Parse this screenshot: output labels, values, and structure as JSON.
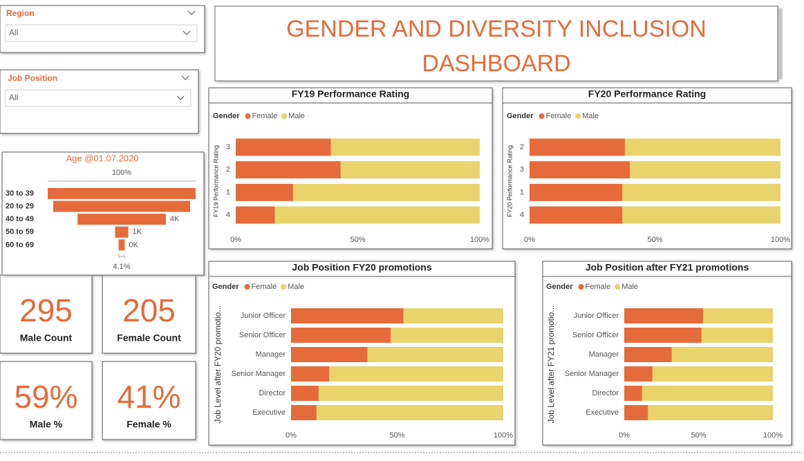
{
  "dashboard_title": "GENDER AND DIVERSITY INCLUSION DASHBOARD",
  "slicers": [
    {
      "label": "Region",
      "selection": "All"
    },
    {
      "label": "Job Position",
      "selection": "All"
    }
  ],
  "cards": [
    {
      "value": "295",
      "label": "Male Count"
    },
    {
      "value": "205",
      "label": "Female Count"
    },
    {
      "value": "59%",
      "label": "Male %"
    },
    {
      "value": "41%",
      "label": "Female %"
    }
  ],
  "chart_data": [
    {
      "type": "funnel",
      "title": "Age @01.07.2020",
      "categories": [
        "30 to 39",
        "20 to 29",
        "40 to 49",
        "50 to 59",
        "60 to 69"
      ],
      "values": [
        6700,
        6200,
        4000,
        600,
        275
      ],
      "value_labels": [
        null,
        null,
        "4K",
        "1K",
        "0K"
      ],
      "color": "#e66b3a",
      "top_label": "100%",
      "bottom_label": "4.1%"
    },
    {
      "type": "bar",
      "title": "FY19 Performance Rating",
      "legend_title": "Gender",
      "y_label": "FY19 Performance Rating",
      "categories": [
        "3",
        "2",
        "1",
        "4"
      ],
      "series": [
        {
          "name": "Female",
          "color": "#e66b3a",
          "values": [
            39,
            43,
            23.5,
            16
          ]
        },
        {
          "name": "Male",
          "color": "#e8d36d",
          "values": [
            61,
            57,
            76.5,
            84
          ]
        }
      ],
      "xlim": [
        0,
        100
      ],
      "xticks": [
        {
          "value": 0,
          "label": "0%"
        },
        {
          "value": 50,
          "label": "50%"
        },
        {
          "value": 100,
          "label": "100%"
        }
      ]
    },
    {
      "type": "bar",
      "title": "FY20 Performance Rating",
      "legend_title": "Gender",
      "y_label": "FY20 Performance Rating",
      "categories": [
        "2",
        "3",
        "1",
        "4"
      ],
      "series": [
        {
          "name": "Female",
          "color": "#e66b3a",
          "values": [
            38,
            40,
            37,
            37
          ]
        },
        {
          "name": "Male",
          "color": "#e8d36d",
          "values": [
            62,
            60,
            63,
            63
          ]
        }
      ],
      "xlim": [
        0,
        100
      ],
      "xticks": [
        {
          "value": 0,
          "label": "0%"
        },
        {
          "value": 50,
          "label": "50%"
        },
        {
          "value": 100,
          "label": "100%"
        }
      ]
    },
    {
      "type": "bar",
      "title": "Job Position FY20 promotions",
      "legend_title": "Gender",
      "y_label": "Job Level after FY20 promotio...",
      "categories": [
        "Junior Officer",
        "Senior Officer",
        "Manager",
        "Senior Manager",
        "Director",
        "Executive"
      ],
      "series": [
        {
          "name": "Female",
          "color": "#e66b3a",
          "values": [
            53,
            47,
            36,
            18,
            13,
            12
          ]
        },
        {
          "name": "Male",
          "color": "#e8d36d",
          "values": [
            47,
            53,
            64,
            82,
            87,
            88
          ]
        }
      ],
      "xlim": [
        0,
        100
      ],
      "xticks": [
        {
          "value": 0,
          "label": "0%"
        },
        {
          "value": 50,
          "label": "50%"
        },
        {
          "value": 100,
          "label": "100%"
        }
      ]
    },
    {
      "type": "bar",
      "title": "Job Position after FY21 promotions",
      "legend_title": "Gender",
      "y_label": "Job Level after FY21 promotio...",
      "categories": [
        "Junior Officer",
        "Senior Officer",
        "Manager",
        "Senior Manager",
        "Director",
        "Executive"
      ],
      "series": [
        {
          "name": "Female",
          "color": "#e66b3a",
          "values": [
            53,
            52,
            32,
            19,
            12,
            16
          ]
        },
        {
          "name": "Male",
          "color": "#e8d36d",
          "values": [
            47,
            48,
            68,
            81,
            88,
            84
          ]
        }
      ],
      "xlim": [
        0,
        100
      ],
      "xticks": [
        {
          "value": 0,
          "label": "0%"
        },
        {
          "value": 50,
          "label": "50%"
        },
        {
          "value": 100,
          "label": "100%"
        }
      ]
    }
  ]
}
